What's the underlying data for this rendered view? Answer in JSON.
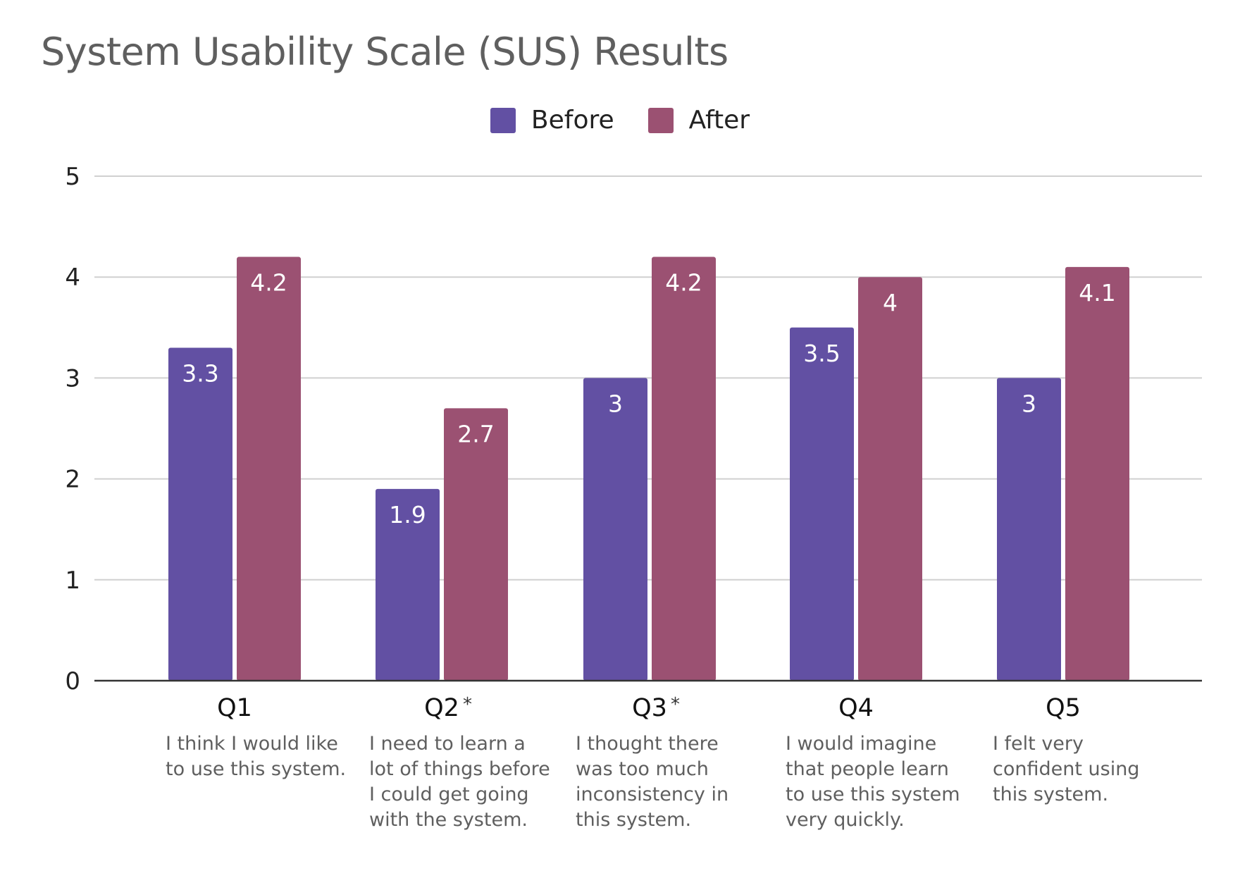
{
  "chart_data": {
    "type": "bar",
    "title": "System Usability Scale (SUS) Results",
    "categories": [
      "Q1",
      "Q2",
      "Q3",
      "Q4",
      "Q5"
    ],
    "category_marks": [
      "",
      "*",
      "*",
      "",
      ""
    ],
    "descriptions": [
      "I think I would like to use this system.",
      " I need to learn a lot of things before I could get going with the system.",
      "I thought there was too much inconsistency in this system.",
      "I would imagine that people learn to use this system very quickly.",
      "I felt very confident using this system."
    ],
    "series": [
      {
        "name": "Before",
        "values": [
          3.3,
          1.9,
          3,
          3.5,
          3
        ],
        "color": "#6250a3"
      },
      {
        "name": "After",
        "values": [
          4.2,
          2.7,
          4.2,
          4,
          4.1
        ],
        "color": "#9b5172"
      }
    ],
    "yticks": [
      "0",
      "1",
      "2",
      "3",
      "4",
      "5"
    ],
    "ylim": [
      0,
      5
    ],
    "grid": true,
    "legend_position": "top-center",
    "xlabel": "",
    "ylabel": ""
  }
}
